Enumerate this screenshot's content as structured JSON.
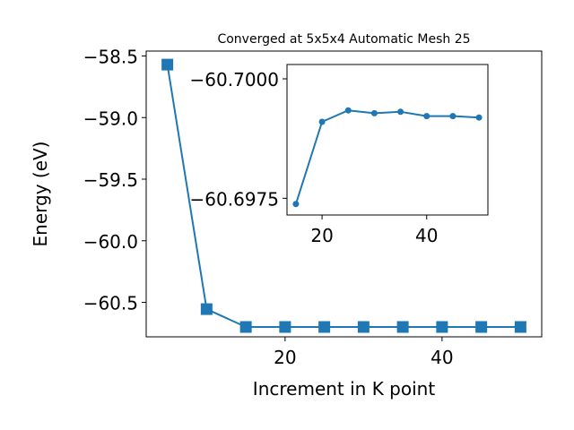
{
  "chart_data": [
    {
      "type": "line",
      "title": "Converged at 5x5x4 Automatic Mesh 25",
      "xlabel": "Increment in K point",
      "ylabel": "Energy (eV)",
      "marker": "square",
      "color": "#1f77b4",
      "xlim": [
        2.3,
        52.7
      ],
      "ylim": [
        -60.78,
        -58.46
      ],
      "xticks": [
        20,
        40
      ],
      "yticks": [
        -58.5,
        -59.0,
        -59.5,
        -60.0,
        -60.5
      ],
      "ytick_labels": [
        "−58.5",
        "−59.0",
        "−59.5",
        "−60.0",
        "−60.5"
      ],
      "series": [
        {
          "x": [
            5,
            10,
            15,
            20,
            25,
            30,
            35,
            40,
            45,
            50
          ],
          "y": [
            -58.57,
            -60.555,
            -60.7,
            -60.7,
            -60.7,
            -60.7,
            -60.7,
            -60.7,
            -60.7,
            -60.7
          ]
        }
      ]
    },
    {
      "type": "line",
      "inset": true,
      "marker": "circle",
      "color": "#1f77b4",
      "xlim": [
        13.3,
        51.7
      ],
      "ylim": [
        -60.69715,
        -60.7003
      ],
      "xticks": [
        20,
        40
      ],
      "yticks": [
        -60.7,
        -60.6975
      ],
      "ytick_labels": [
        "−60.7000",
        "−60.6975"
      ],
      "series": [
        {
          "x": [
            15,
            20,
            25,
            30,
            35,
            40,
            45,
            50
          ],
          "y": [
            -60.69738,
            -60.6991,
            -60.69934,
            -60.69928,
            -60.69931,
            -60.69922,
            -60.69922,
            -60.69919
          ]
        }
      ]
    }
  ]
}
